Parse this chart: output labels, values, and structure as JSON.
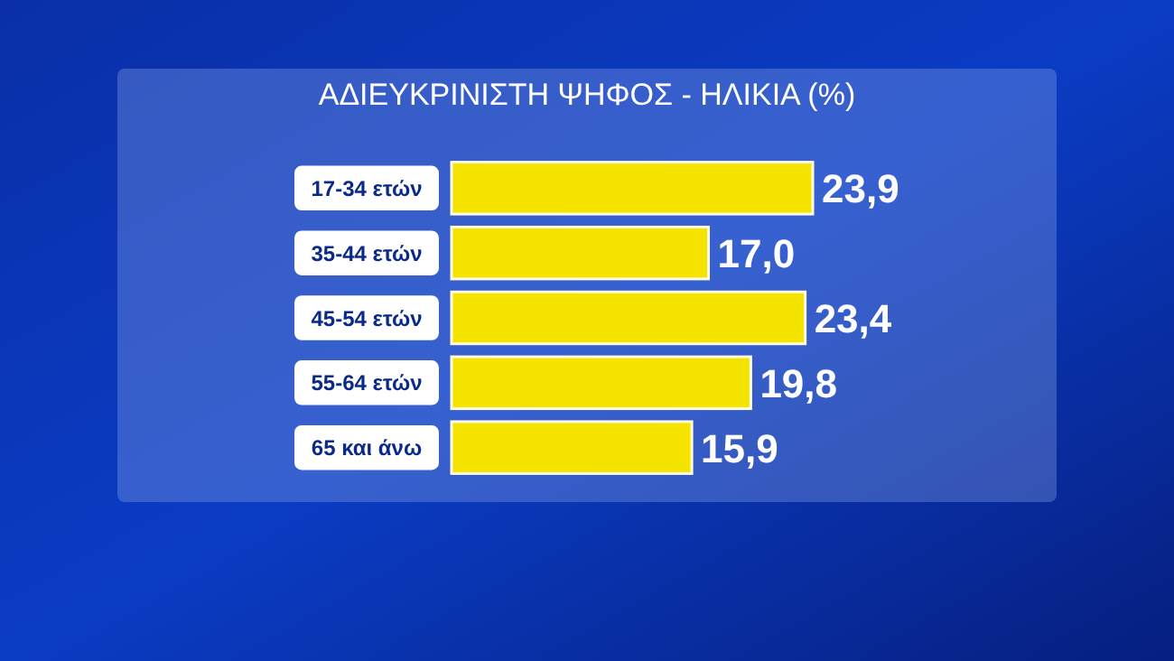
{
  "chart_data": {
    "type": "bar",
    "orientation": "horizontal",
    "title": "ΑΔΙΕΥΚΡΙΝΙΣΤΗ ΨΗΦΟΣ - ΗΛΙΚΙΑ (%)",
    "categories": [
      "17-34 ετών",
      "35-44 ετών",
      "45-54 ετών",
      "55-64 ετών",
      "65 και άνω"
    ],
    "values": [
      23.9,
      17.0,
      23.4,
      19.8,
      15.9
    ],
    "value_labels": [
      "23,9",
      "17,0",
      "23,4",
      "19,8",
      "15,9"
    ],
    "color": "#f5e400"
  }
}
